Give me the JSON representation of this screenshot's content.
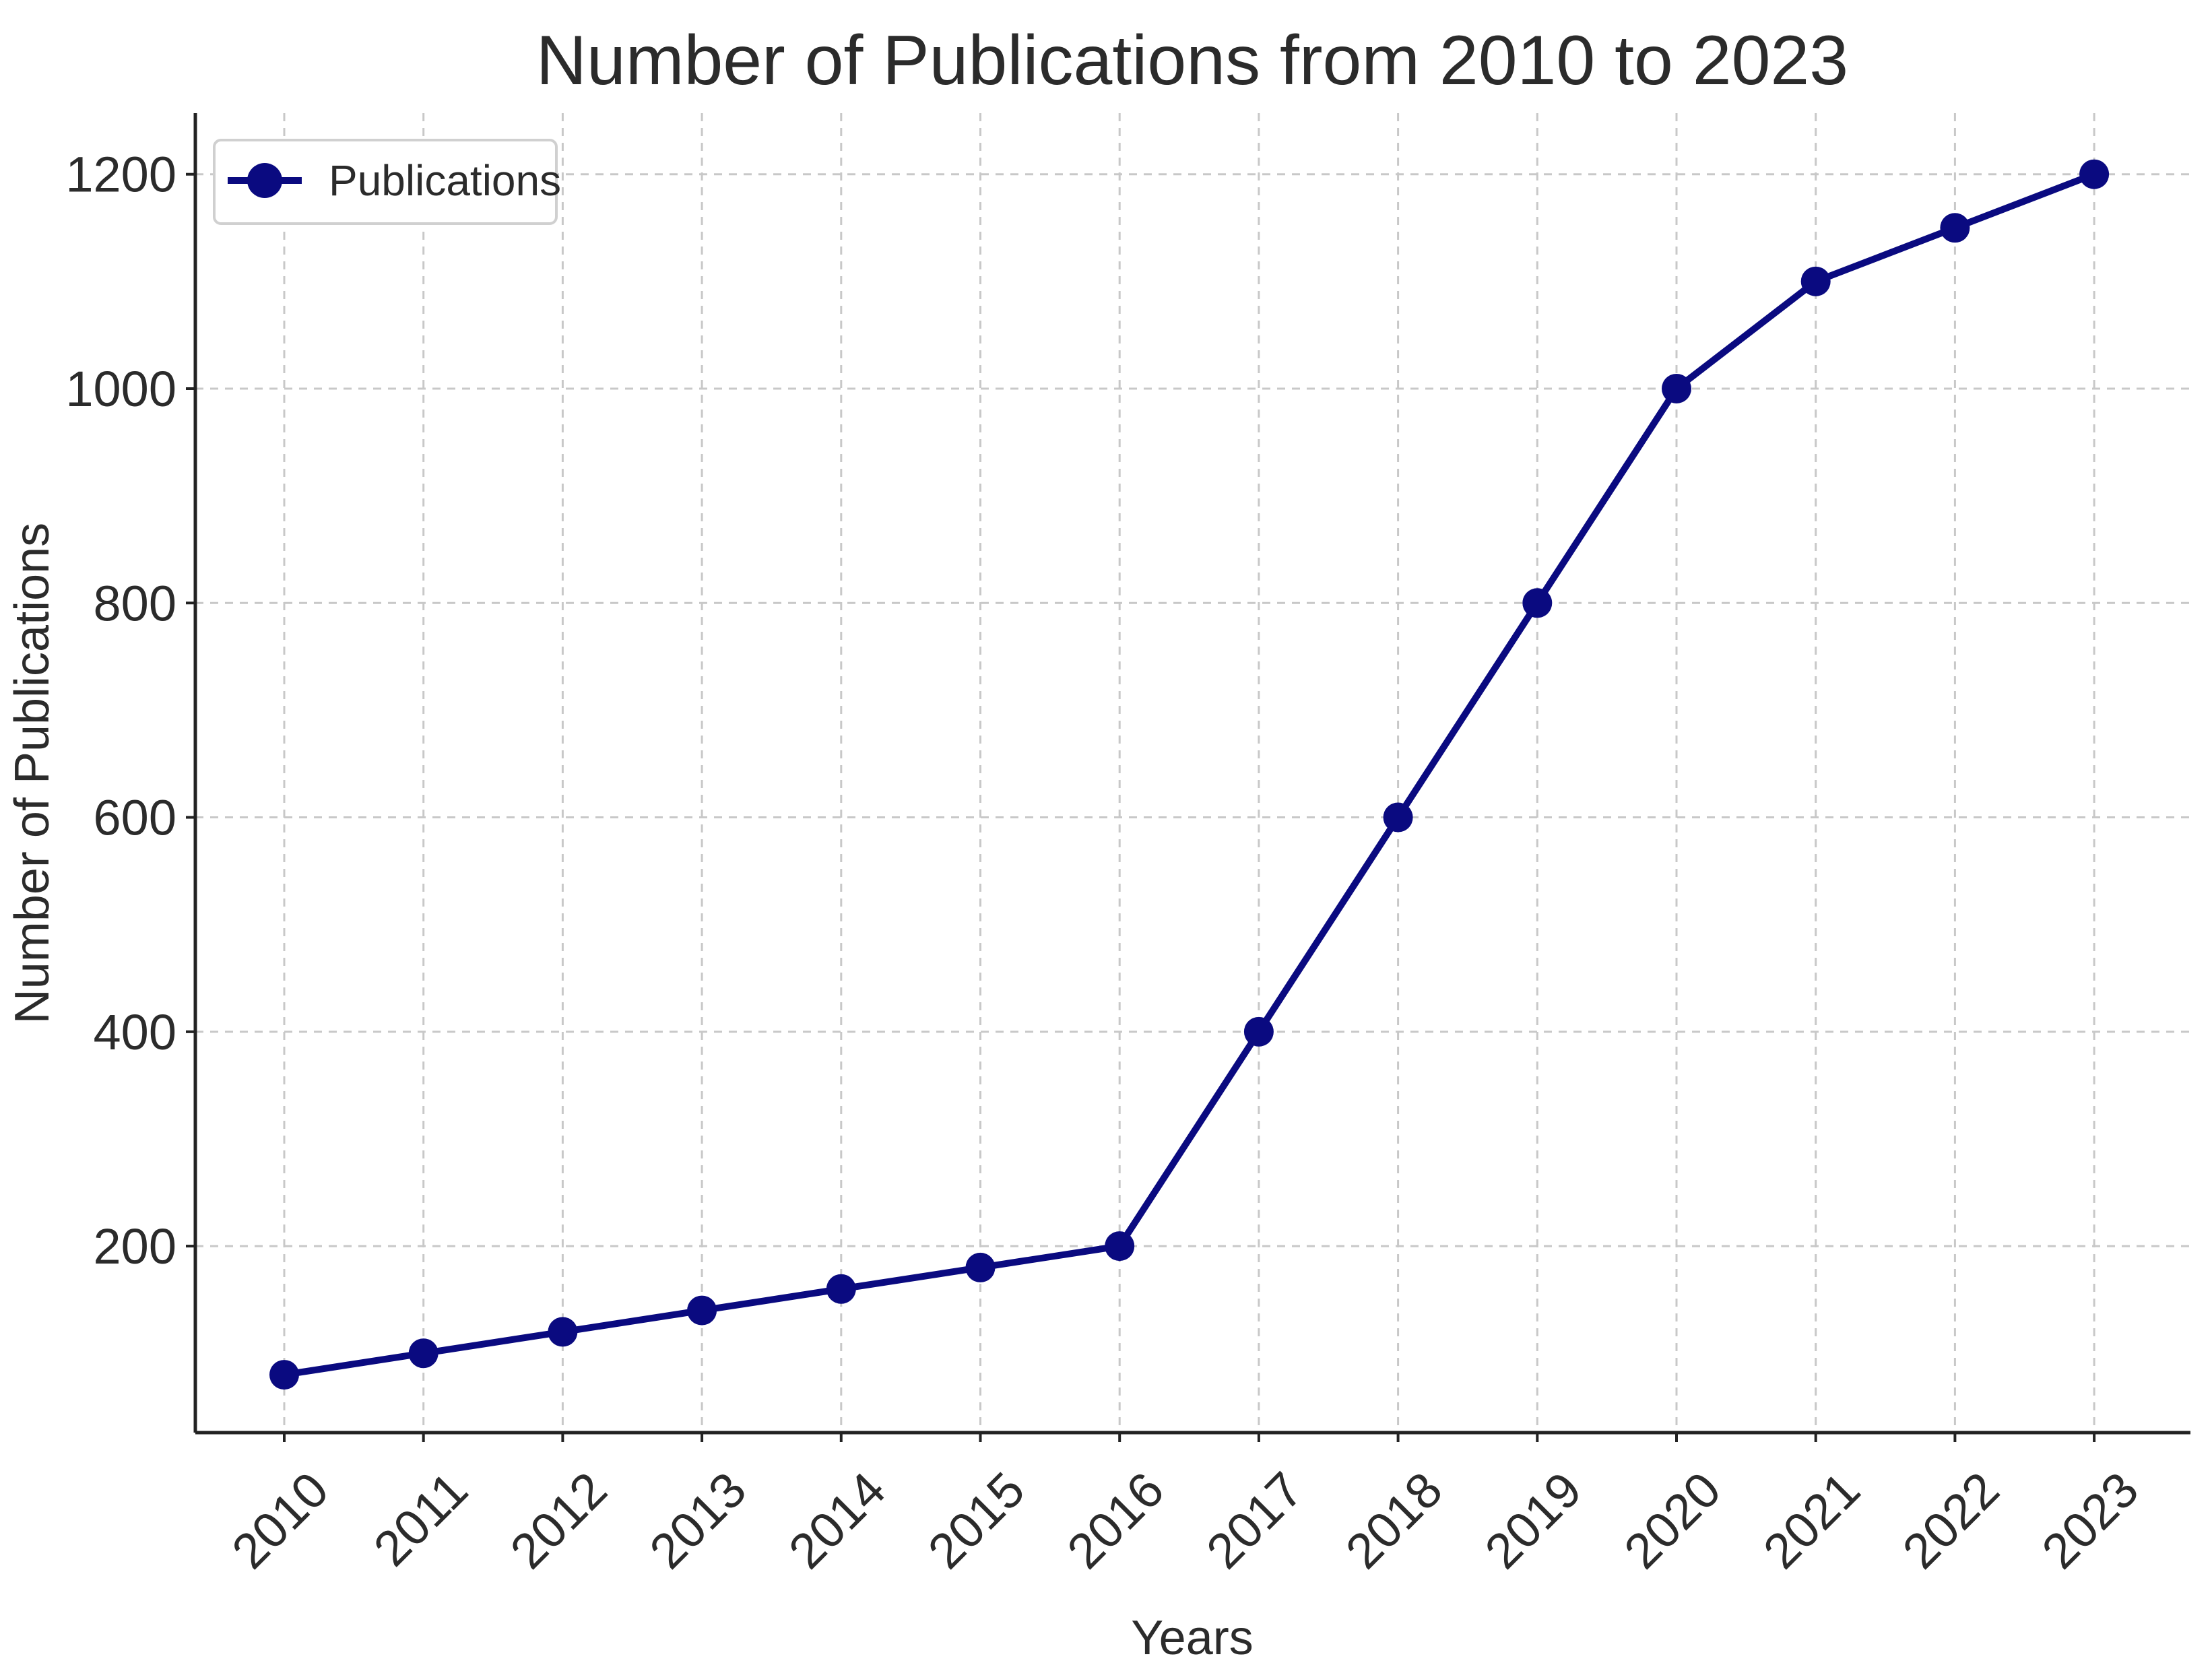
{
  "chart_data": {
    "type": "line",
    "title": "Number of Publications from 2010 to 2023",
    "xlabel": "Years",
    "ylabel": "Number of Publications",
    "categories": [
      "2010",
      "2011",
      "2012",
      "2013",
      "2014",
      "2015",
      "2016",
      "2017",
      "2018",
      "2019",
      "2020",
      "2021",
      "2022",
      "2023"
    ],
    "series": [
      {
        "name": "Publications",
        "values": [
          80,
          100,
          120,
          140,
          160,
          180,
          200,
          400,
          600,
          800,
          1000,
          1100,
          1150,
          1200
        ],
        "color": "#0a0a80"
      }
    ],
    "yticks": [
      "200",
      "400",
      "600",
      "800",
      "1000",
      "1200"
    ],
    "ylim": [
      26,
      1257
    ],
    "grid": true,
    "grid_style": "dashed",
    "legend_position": "top-left",
    "x_tick_rotation": "45 degrees"
  }
}
